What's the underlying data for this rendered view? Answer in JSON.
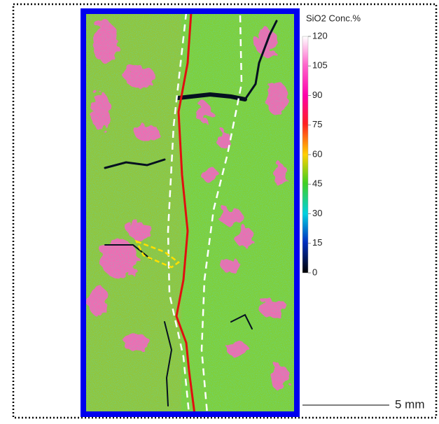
{
  "colorbar": {
    "title": "SiO2  Conc.%",
    "ticks": [
      120,
      105,
      90,
      75,
      60,
      45,
      30,
      15,
      0
    ]
  },
  "scale_bar": {
    "label": "5 mm"
  }
}
